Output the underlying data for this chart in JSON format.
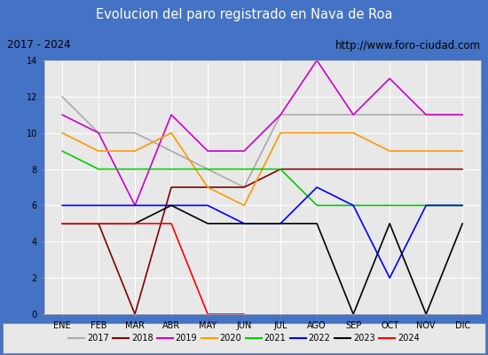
{
  "title": "Evolucion del paro registrado en Nava de Roa",
  "subtitle_left": "2017 - 2024",
  "subtitle_right": "http://www.foro-ciudad.com",
  "months": [
    "ENE",
    "FEB",
    "MAR",
    "ABR",
    "MAY",
    "JUN",
    "JUL",
    "AGO",
    "SEP",
    "OCT",
    "NOV",
    "DIC"
  ],
  "series": {
    "2017": {
      "color": "#aaaaaa",
      "data": [
        12,
        10,
        10,
        9,
        8,
        7,
        11,
        11,
        11,
        11,
        11,
        11
      ]
    },
    "2018": {
      "color": "#800000",
      "data": [
        5,
        5,
        0,
        7,
        7,
        7,
        8,
        8,
        8,
        8,
        8,
        8
      ]
    },
    "2019": {
      "color": "#cc00cc",
      "data": [
        11,
        10,
        6,
        11,
        9,
        9,
        11,
        14,
        11,
        13,
        11,
        11
      ]
    },
    "2020": {
      "color": "#ff9900",
      "data": [
        10,
        9,
        9,
        10,
        7,
        6,
        10,
        10,
        10,
        9,
        9,
        9
      ]
    },
    "2021": {
      "color": "#00cc00",
      "data": [
        9,
        8,
        8,
        8,
        8,
        8,
        8,
        6,
        6,
        6,
        6,
        6
      ]
    },
    "2022": {
      "color": "#0000ff",
      "data": [
        6,
        6,
        6,
        6,
        6,
        5,
        5,
        7,
        6,
        2,
        6,
        6
      ]
    },
    "2023": {
      "color": "#000000",
      "data": [
        5,
        5,
        5,
        6,
        5,
        5,
        5,
        5,
        0,
        5,
        0,
        5
      ]
    },
    "2024": {
      "color": "#ff0000",
      "data": [
        5,
        5,
        5,
        5,
        0,
        0,
        null,
        null,
        null,
        null,
        null,
        null
      ]
    }
  },
  "ylim": [
    0,
    14
  ],
  "yticks": [
    0,
    2,
    4,
    6,
    8,
    10,
    12,
    14
  ],
  "title_bg_color": "#4472c4",
  "title_text_color": "#ffffff",
  "subtitle_bg_color": "#e8e8e8",
  "plot_bg_color": "#e8e8e8",
  "grid_color": "#ffffff",
  "outer_bg_color": "#4472c4",
  "inner_bg_color": "#ffffff"
}
